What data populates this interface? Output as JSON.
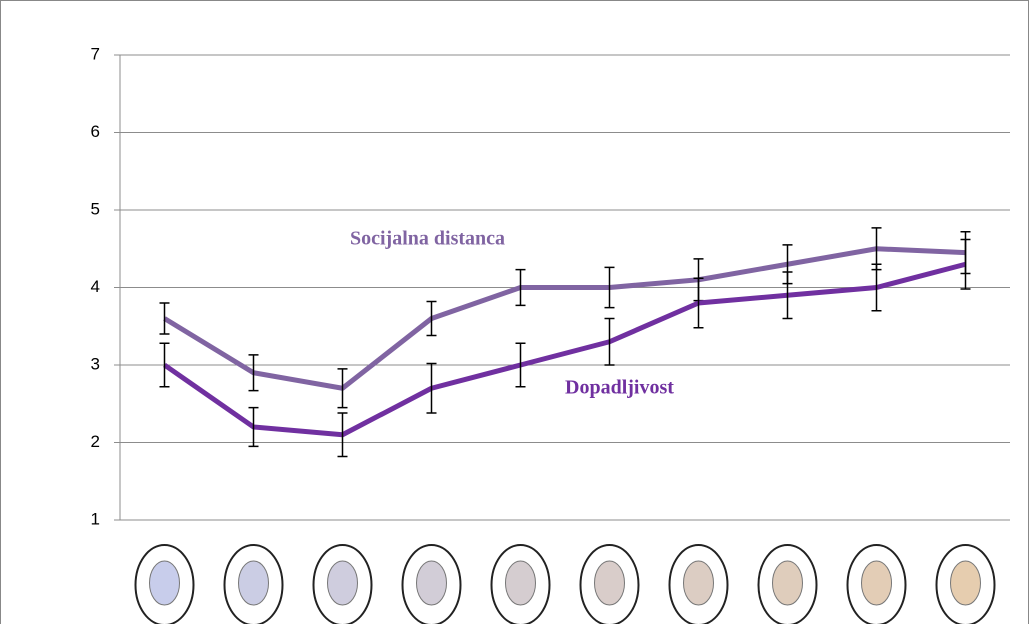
{
  "chart_data": {
    "type": "line",
    "categories": [
      null,
      null,
      null,
      null,
      null,
      null,
      null,
      null,
      null,
      null
    ],
    "series": [
      {
        "name": "Socijalna distanca",
        "color": "#8064a2",
        "values": [
          3.6,
          2.9,
          2.7,
          3.6,
          4.0,
          4.0,
          4.1,
          4.3,
          4.5,
          4.45
        ],
        "errors": [
          0.2,
          0.23,
          0.25,
          0.22,
          0.23,
          0.26,
          0.27,
          0.25,
          0.27,
          0.27
        ]
      },
      {
        "name": "Dopadljivost",
        "color": "#7030a0",
        "values": [
          3.0,
          2.2,
          2.1,
          2.7,
          3.0,
          3.3,
          3.8,
          3.9,
          4.0,
          4.3
        ],
        "errors": [
          0.28,
          0.25,
          0.28,
          0.32,
          0.28,
          0.3,
          0.32,
          0.3,
          0.3,
          0.32
        ]
      }
    ],
    "ylim": [
      1,
      7
    ],
    "yticks": [
      1,
      2,
      3,
      4,
      5,
      6,
      7
    ],
    "grid": true
  }
}
